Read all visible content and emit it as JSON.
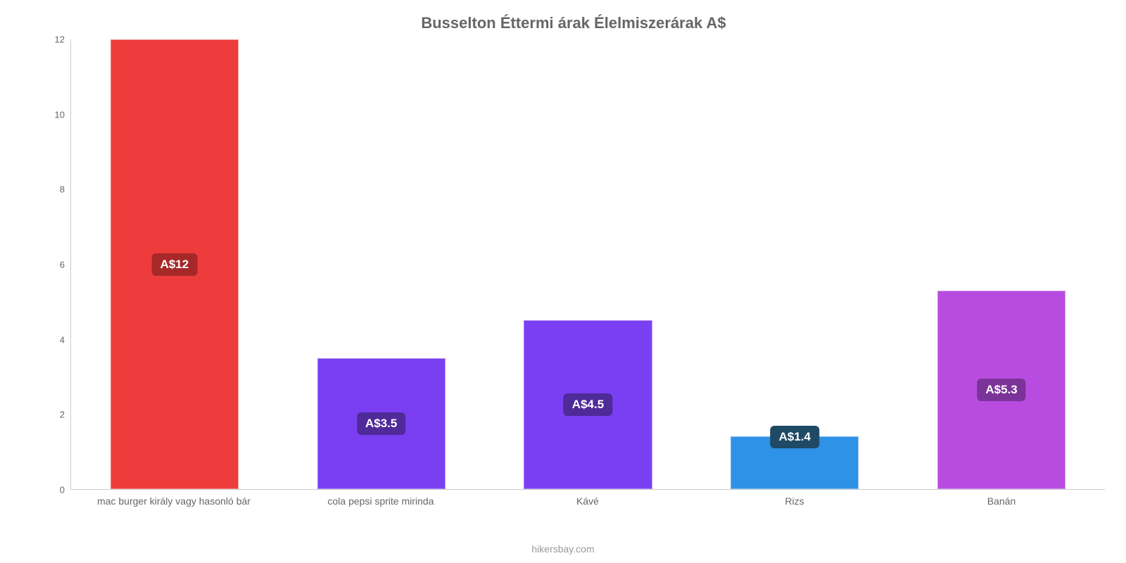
{
  "chart": {
    "type": "bar",
    "title": "Busselton Éttermi árak Élelmiszerárak A$",
    "title_fontsize": 22,
    "title_color": "#666666",
    "background_color": "#ffffff",
    "axis_color": "#cccccc",
    "tick_color": "#666666",
    "tick_fontsize": 13,
    "xlabel_fontsize": 14,
    "ylim": [
      0,
      12
    ],
    "ytick_step": 2,
    "yticks": [
      0,
      2,
      4,
      6,
      8,
      10,
      12
    ],
    "bar_width": 0.62,
    "currency_prefix": "A$",
    "label_fontsize": 17,
    "label_text_color": "#ffffff",
    "categories": [
      "mac burger király vagy hasonló bár",
      "cola pepsi sprite mirinda",
      "Kávé",
      "Rizs",
      "Banán"
    ],
    "values": [
      12,
      3.5,
      4.5,
      1.4,
      5.3
    ],
    "value_labels": [
      "A$12",
      "A$3.5",
      "A$4.5",
      "A$1.4",
      "A$5.3"
    ],
    "bar_colors": [
      "#ee3b3b",
      "#7b3ff2",
      "#7b3ff2",
      "#2e92e6",
      "#b84ce0"
    ],
    "label_bg_colors": [
      "#a62828",
      "#4f2a99",
      "#4f2a99",
      "#1e4a66",
      "#7a3399"
    ],
    "label_position": [
      "inside",
      "inside",
      "inside",
      "above",
      "inside"
    ],
    "footer": "hikersbay.com",
    "footer_color": "#999999",
    "footer_fontsize": 14
  }
}
